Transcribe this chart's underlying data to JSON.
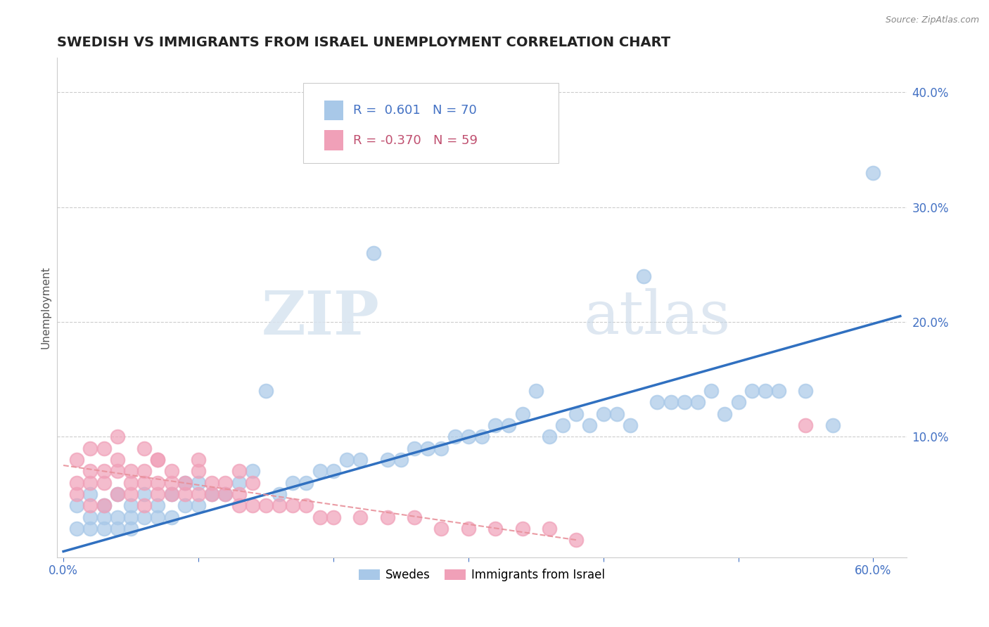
{
  "title": "SWEDISH VS IMMIGRANTS FROM ISRAEL UNEMPLOYMENT CORRELATION CHART",
  "source": "Source: ZipAtlas.com",
  "ylabel": "Unemployment",
  "x_tick_labels": [
    "0.0%",
    "",
    "",
    "",
    "",
    "",
    "60.0%"
  ],
  "x_tick_values": [
    0.0,
    0.1,
    0.2,
    0.3,
    0.4,
    0.5,
    0.6
  ],
  "y_tick_labels": [
    "10.0%",
    "20.0%",
    "30.0%",
    "40.0%"
  ],
  "y_tick_values": [
    0.1,
    0.2,
    0.3,
    0.4
  ],
  "xlim": [
    -0.005,
    0.625
  ],
  "ylim": [
    -0.005,
    0.43
  ],
  "blue_color": "#a8c8e8",
  "pink_color": "#f0a0b8",
  "trend_blue": "#3070c0",
  "trend_pink": "#e8909a",
  "legend_R_blue": "0.601",
  "legend_N_blue": "70",
  "legend_R_pink": "-0.370",
  "legend_N_pink": "59",
  "label_swedes": "Swedes",
  "label_immigrants": "Immigrants from Israel",
  "watermark_ZIP": "ZIP",
  "watermark_atlas": "atlas",
  "blue_trend_x": [
    0.0,
    0.62
  ],
  "blue_trend_y": [
    0.0,
    0.205
  ],
  "pink_trend_x": [
    0.0,
    0.38
  ],
  "pink_trend_y": [
    0.075,
    0.01
  ],
  "swedes_x": [
    0.01,
    0.01,
    0.02,
    0.02,
    0.02,
    0.03,
    0.03,
    0.03,
    0.04,
    0.04,
    0.04,
    0.05,
    0.05,
    0.05,
    0.06,
    0.06,
    0.07,
    0.07,
    0.08,
    0.08,
    0.09,
    0.09,
    0.1,
    0.1,
    0.11,
    0.12,
    0.13,
    0.14,
    0.15,
    0.16,
    0.17,
    0.18,
    0.19,
    0.2,
    0.21,
    0.22,
    0.23,
    0.24,
    0.25,
    0.26,
    0.27,
    0.28,
    0.29,
    0.3,
    0.31,
    0.32,
    0.33,
    0.34,
    0.35,
    0.36,
    0.37,
    0.38,
    0.39,
    0.4,
    0.41,
    0.42,
    0.43,
    0.44,
    0.45,
    0.46,
    0.47,
    0.48,
    0.49,
    0.5,
    0.51,
    0.52,
    0.53,
    0.55,
    0.57,
    0.6
  ],
  "swedes_y": [
    0.02,
    0.04,
    0.02,
    0.03,
    0.05,
    0.02,
    0.03,
    0.04,
    0.02,
    0.03,
    0.05,
    0.02,
    0.03,
    0.04,
    0.03,
    0.05,
    0.03,
    0.04,
    0.03,
    0.05,
    0.04,
    0.06,
    0.04,
    0.06,
    0.05,
    0.05,
    0.06,
    0.07,
    0.14,
    0.05,
    0.06,
    0.06,
    0.07,
    0.07,
    0.08,
    0.08,
    0.26,
    0.08,
    0.08,
    0.09,
    0.09,
    0.09,
    0.1,
    0.1,
    0.1,
    0.11,
    0.11,
    0.12,
    0.14,
    0.1,
    0.11,
    0.12,
    0.11,
    0.12,
    0.12,
    0.11,
    0.24,
    0.13,
    0.13,
    0.13,
    0.13,
    0.14,
    0.12,
    0.13,
    0.14,
    0.14,
    0.14,
    0.14,
    0.11,
    0.33
  ],
  "immigrants_x": [
    0.01,
    0.01,
    0.01,
    0.02,
    0.02,
    0.02,
    0.02,
    0.03,
    0.03,
    0.03,
    0.03,
    0.04,
    0.04,
    0.04,
    0.05,
    0.05,
    0.05,
    0.06,
    0.06,
    0.06,
    0.06,
    0.07,
    0.07,
    0.07,
    0.08,
    0.08,
    0.08,
    0.09,
    0.09,
    0.1,
    0.1,
    0.11,
    0.11,
    0.12,
    0.12,
    0.13,
    0.13,
    0.14,
    0.14,
    0.15,
    0.16,
    0.17,
    0.18,
    0.19,
    0.2,
    0.22,
    0.24,
    0.26,
    0.28,
    0.3,
    0.32,
    0.34,
    0.36,
    0.38,
    0.04,
    0.07,
    0.1,
    0.13,
    0.55
  ],
  "immigrants_y": [
    0.05,
    0.06,
    0.08,
    0.04,
    0.06,
    0.07,
    0.09,
    0.04,
    0.06,
    0.07,
    0.09,
    0.05,
    0.07,
    0.08,
    0.05,
    0.06,
    0.07,
    0.04,
    0.06,
    0.07,
    0.09,
    0.05,
    0.06,
    0.08,
    0.05,
    0.06,
    0.07,
    0.05,
    0.06,
    0.05,
    0.07,
    0.05,
    0.06,
    0.05,
    0.06,
    0.04,
    0.05,
    0.04,
    0.06,
    0.04,
    0.04,
    0.04,
    0.04,
    0.03,
    0.03,
    0.03,
    0.03,
    0.03,
    0.02,
    0.02,
    0.02,
    0.02,
    0.02,
    0.01,
    0.1,
    0.08,
    0.08,
    0.07,
    0.11
  ]
}
